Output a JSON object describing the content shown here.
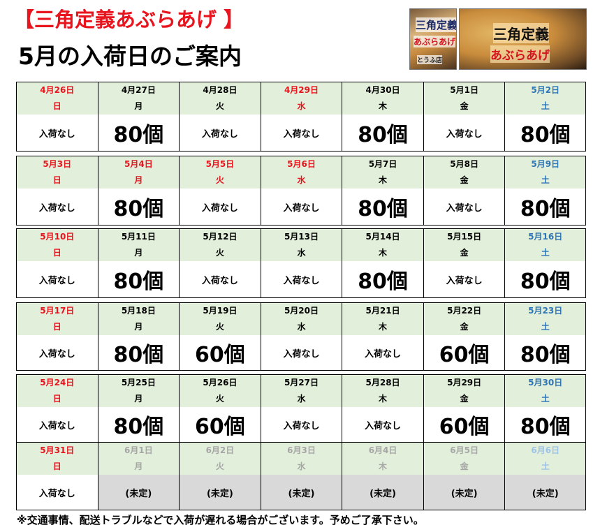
{
  "header": {
    "title_product": "【三角定義あぶらあげ 】",
    "title_main": "5月の入荷日のご案内"
  },
  "photos": {
    "package": {
      "line1": "三角定義",
      "line2": "あぶらあげ",
      "line3": "とうふ店"
    },
    "product": {
      "line1": "三角定義",
      "line2": "あぶらあげ"
    }
  },
  "calendar": {
    "weeks": [
      {
        "days": [
          {
            "date": "4月26日",
            "weekday": "日",
            "amount": "入荷なし",
            "kind": "none",
            "color": "red"
          },
          {
            "date": "4月27日",
            "weekday": "月",
            "amount": "80個",
            "kind": "big",
            "color": "black"
          },
          {
            "date": "4月28日",
            "weekday": "火",
            "amount": "入荷なし",
            "kind": "none",
            "color": "black"
          },
          {
            "date": "4月29日",
            "weekday": "水",
            "amount": "入荷なし",
            "kind": "none",
            "color": "red"
          },
          {
            "date": "4月30日",
            "weekday": "木",
            "amount": "80個",
            "kind": "big",
            "color": "black"
          },
          {
            "date": "5月1日",
            "weekday": "金",
            "amount": "入荷なし",
            "kind": "none",
            "color": "black"
          },
          {
            "date": "5月2日",
            "weekday": "土",
            "amount": "80個",
            "kind": "big",
            "color": "blue"
          }
        ]
      },
      {
        "days": [
          {
            "date": "5月3日",
            "weekday": "日",
            "amount": "入荷なし",
            "kind": "none",
            "color": "red"
          },
          {
            "date": "5月4日",
            "weekday": "月",
            "amount": "80個",
            "kind": "big",
            "color": "red"
          },
          {
            "date": "5月5日",
            "weekday": "火",
            "amount": "入荷なし",
            "kind": "none",
            "color": "red"
          },
          {
            "date": "5月6日",
            "weekday": "水",
            "amount": "入荷なし",
            "kind": "none",
            "color": "red"
          },
          {
            "date": "5月7日",
            "weekday": "木",
            "amount": "80個",
            "kind": "big",
            "color": "black"
          },
          {
            "date": "5月8日",
            "weekday": "金",
            "amount": "入荷なし",
            "kind": "none",
            "color": "black"
          },
          {
            "date": "5月9日",
            "weekday": "土",
            "amount": "80個",
            "kind": "big",
            "color": "blue"
          }
        ]
      },
      {
        "days": [
          {
            "date": "5月10日",
            "weekday": "日",
            "amount": "入荷なし",
            "kind": "none",
            "color": "red"
          },
          {
            "date": "5月11日",
            "weekday": "月",
            "amount": "80個",
            "kind": "big",
            "color": "black"
          },
          {
            "date": "5月12日",
            "weekday": "火",
            "amount": "入荷なし",
            "kind": "none",
            "color": "black"
          },
          {
            "date": "5月13日",
            "weekday": "水",
            "amount": "入荷なし",
            "kind": "none",
            "color": "black"
          },
          {
            "date": "5月14日",
            "weekday": "木",
            "amount": "80個",
            "kind": "big",
            "color": "black"
          },
          {
            "date": "5月15日",
            "weekday": "金",
            "amount": "入荷なし",
            "kind": "none",
            "color": "black"
          },
          {
            "date": "5月16日",
            "weekday": "土",
            "amount": "80個",
            "kind": "big",
            "color": "blue"
          }
        ]
      },
      {
        "days": [
          {
            "date": "5月17日",
            "weekday": "日",
            "amount": "入荷なし",
            "kind": "none",
            "color": "red"
          },
          {
            "date": "5月18日",
            "weekday": "月",
            "amount": "80個",
            "kind": "big",
            "color": "black"
          },
          {
            "date": "5月19日",
            "weekday": "火",
            "amount": "60個",
            "kind": "big",
            "color": "black"
          },
          {
            "date": "5月20日",
            "weekday": "水",
            "amount": "入荷なし",
            "kind": "none",
            "color": "black"
          },
          {
            "date": "5月21日",
            "weekday": "木",
            "amount": "入荷なし",
            "kind": "none",
            "color": "black"
          },
          {
            "date": "5月22日",
            "weekday": "金",
            "amount": "60個",
            "kind": "big",
            "color": "black"
          },
          {
            "date": "5月23日",
            "weekday": "土",
            "amount": "80個",
            "kind": "big",
            "color": "blue"
          }
        ]
      },
      {
        "days": [
          {
            "date": "5月24日",
            "weekday": "日",
            "amount": "入荷なし",
            "kind": "none",
            "color": "red"
          },
          {
            "date": "5月25日",
            "weekday": "月",
            "amount": "80個",
            "kind": "big",
            "color": "black"
          },
          {
            "date": "5月26日",
            "weekday": "火",
            "amount": "60個",
            "kind": "big",
            "color": "black"
          },
          {
            "date": "5月27日",
            "weekday": "水",
            "amount": "入荷なし",
            "kind": "none",
            "color": "black"
          },
          {
            "date": "5月28日",
            "weekday": "木",
            "amount": "入荷なし",
            "kind": "none",
            "color": "black"
          },
          {
            "date": "5月29日",
            "weekday": "金",
            "amount": "60個",
            "kind": "big",
            "color": "black"
          },
          {
            "date": "5月30日",
            "weekday": "土",
            "amount": "80個",
            "kind": "big",
            "color": "blue"
          }
        ]
      },
      {
        "days": [
          {
            "date": "5月31日",
            "weekday": "日",
            "amount": "入荷なし",
            "kind": "none",
            "color": "red"
          },
          {
            "date": "6月1日",
            "weekday": "月",
            "amount": "(未定)",
            "kind": "pending",
            "color": "gray"
          },
          {
            "date": "6月2日",
            "weekday": "火",
            "amount": "(未定)",
            "kind": "pending",
            "color": "gray"
          },
          {
            "date": "6月3日",
            "weekday": "水",
            "amount": "(未定)",
            "kind": "pending",
            "color": "gray"
          },
          {
            "date": "6月4日",
            "weekday": "木",
            "amount": "(未定)",
            "kind": "pending",
            "color": "gray"
          },
          {
            "date": "6月5日",
            "weekday": "金",
            "amount": "(未定)",
            "kind": "pending",
            "color": "gray"
          },
          {
            "date": "6月6日",
            "weekday": "土",
            "amount": "(未定)",
            "kind": "pending",
            "color": "lightblue"
          }
        ]
      }
    ]
  },
  "footer": {
    "note": "※交通事情、配送トラブルなどで入荷が遅れる場合がございます。予めご了承下さい。"
  },
  "colors": {
    "title_red": "#e8141e",
    "header_cell_bg": "#e2efda",
    "pending_bg": "#d9d9d9",
    "saturday_blue": "#2e75b6"
  }
}
